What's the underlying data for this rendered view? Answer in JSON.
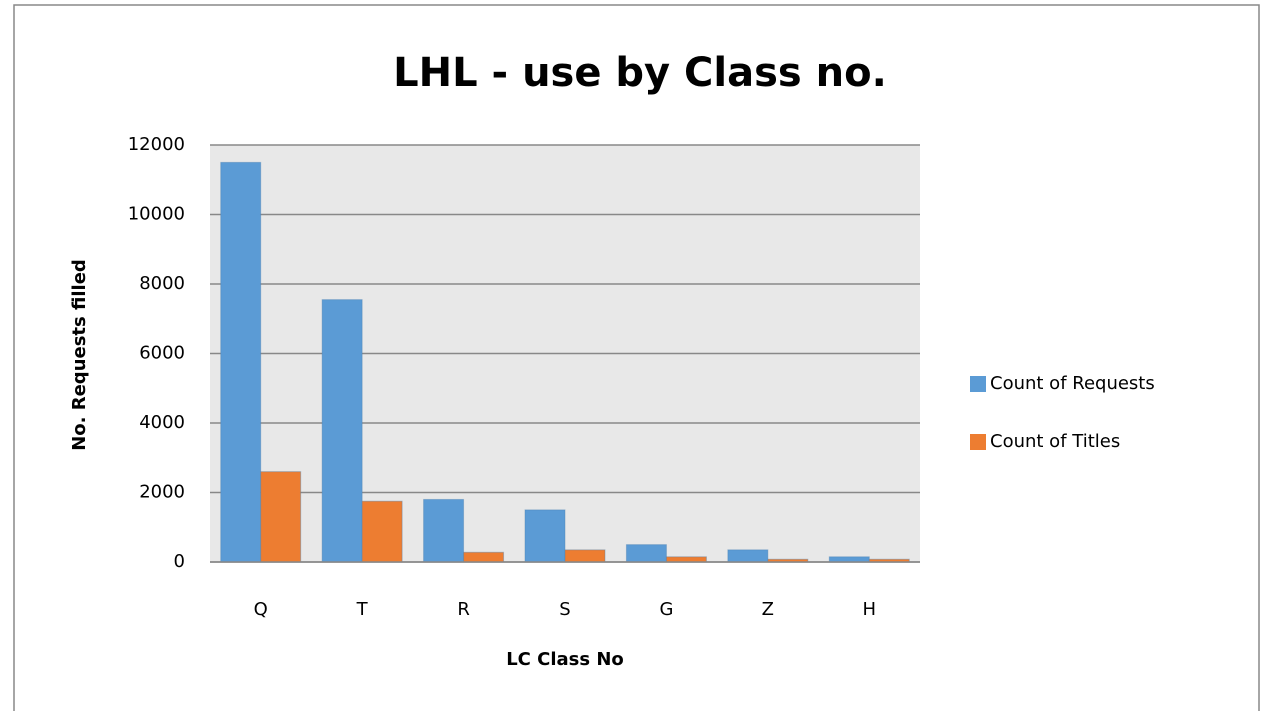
{
  "chart_data": {
    "type": "bar",
    "title": "LHL - use by Class no.",
    "x_label": "LC Class No",
    "y_label": "No. Requests filled",
    "categories": [
      "Q",
      "T",
      "R",
      "S",
      "G",
      "Z",
      "H"
    ],
    "series": [
      {
        "name": "Count of Requests",
        "color": "#5b9bd5",
        "values": [
          11500,
          7550,
          1800,
          1500,
          500,
          350,
          150
        ]
      },
      {
        "name": "Count of Titles",
        "color": "#ed7d31",
        "values": [
          2600,
          1750,
          280,
          350,
          150,
          80,
          80
        ]
      }
    ],
    "ylim": [
      0,
      12000
    ],
    "yticks": [
      0,
      2000,
      4000,
      6000,
      8000,
      10000,
      12000
    ],
    "grid": true,
    "legend": "right"
  }
}
